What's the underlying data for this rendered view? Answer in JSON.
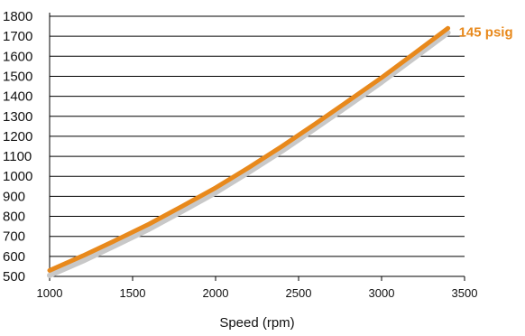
{
  "chart_data": {
    "type": "line",
    "title": "",
    "xlabel": "Speed (rpm)",
    "ylabel": "",
    "xlim": [
      1000,
      3500
    ],
    "ylim": [
      500,
      1800
    ],
    "xticks": [
      1000,
      1500,
      2000,
      2500,
      3000,
      3500
    ],
    "yticks": [
      500,
      600,
      700,
      800,
      900,
      1000,
      1100,
      1200,
      1300,
      1400,
      1500,
      1600,
      1700,
      1800
    ],
    "grid": "horizontal",
    "colors": {
      "primary": "#E8891C",
      "shadow": "#C8C8C8",
      "grid": "#000000"
    },
    "series": [
      {
        "name": "145 psig",
        "color": "#E8891C",
        "x": [
          1000,
          1200,
          1400,
          1600,
          1800,
          2000,
          2200,
          2400,
          2600,
          2800,
          3000,
          3200,
          3400
        ],
        "y": [
          530,
          603,
          681,
          762,
          851,
          943,
          1044,
          1150,
          1262,
          1377,
          1493,
          1616,
          1740
        ]
      },
      {
        "color": "#C8C8C8",
        "x": [
          1000,
          1200,
          1400,
          1600,
          1800,
          2000,
          2200,
          2400,
          2600,
          2800,
          3000,
          3200,
          3400
        ],
        "y": [
          505,
          577,
          656,
          737,
          827,
          919,
          1021,
          1127,
          1240,
          1354,
          1471,
          1594,
          1718
        ]
      }
    ]
  }
}
